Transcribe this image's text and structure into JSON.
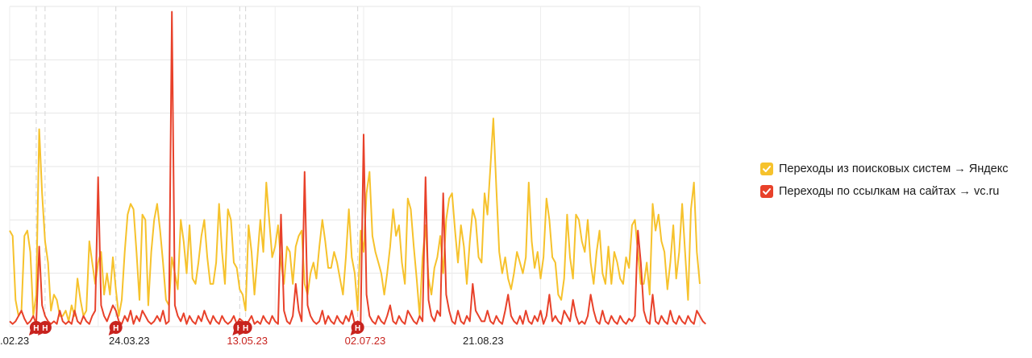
{
  "chart_data": {
    "type": "line",
    "x_axis": {
      "ticks": [
        {
          "label": ".02.23",
          "index": 0,
          "color": "#222222"
        },
        {
          "label": "24.03.23",
          "index": 40,
          "color": "#222222"
        },
        {
          "label": "13.05.23",
          "index": 80,
          "color": "#c8231e"
        },
        {
          "label": "02.07.23",
          "index": 120,
          "color": "#c8231e"
        },
        {
          "label": "21.08.23",
          "index": 160,
          "color": "#222222"
        }
      ]
    },
    "ylim": [
      0,
      6
    ],
    "grid": true,
    "legend_position": "right",
    "series": [
      {
        "name": "Переходы из поисковых систем → Яндекс",
        "color": "#f6c22c",
        "values": [
          1.8,
          1.7,
          0.5,
          0.2,
          0.3,
          1.7,
          1.8,
          1.4,
          0.2,
          0.6,
          3.7,
          2.5,
          1.6,
          1.2,
          0.3,
          0.6,
          0.5,
          0.2,
          0.2,
          0.3,
          0.1,
          0.4,
          0.2,
          0.9,
          0.5,
          0.2,
          0.3,
          1.6,
          1.2,
          0.8,
          1.2,
          1.4,
          0.6,
          1.0,
          0.6,
          1.3,
          0.7,
          0.2,
          0.5,
          1.4,
          2.1,
          2.3,
          2.2,
          1.4,
          0.5,
          2.1,
          2.0,
          0.4,
          1.4,
          2.0,
          2.3,
          1.8,
          1.2,
          0.5,
          0.4,
          1.3,
          1.0,
          0.7,
          2.0,
          1.6,
          1.0,
          1.9,
          0.9,
          0.8,
          1.2,
          1.7,
          2.0,
          1.3,
          0.8,
          0.8,
          1.2,
          2.3,
          1.4,
          0.8,
          2.2,
          2.0,
          1.2,
          1.1,
          0.7,
          0.6,
          0.3,
          1.9,
          1.4,
          0.6,
          1.3,
          2.0,
          1.4,
          2.7,
          2.0,
          1.3,
          1.5,
          1.9,
          1.2,
          0.8,
          1.5,
          1.4,
          0.8,
          1.5,
          1.7,
          1.8,
          0.8,
          0.6,
          1.0,
          1.2,
          0.9,
          1.5,
          2.0,
          1.6,
          1.1,
          1.1,
          1.4,
          1.2,
          0.9,
          0.6,
          1.3,
          2.2,
          1.3,
          1.0,
          0.3,
          1.8,
          1.4,
          2.5,
          2.9,
          1.7,
          1.4,
          1.2,
          1.0,
          0.6,
          1.0,
          1.5,
          2.2,
          1.7,
          1.9,
          1.2,
          0.8,
          2.4,
          2.2,
          1.5,
          0.9,
          0.2,
          1.3,
          1.9,
          0.9,
          0.6,
          1.1,
          1.3,
          1.7,
          1.0,
          2.0,
          2.4,
          2.5,
          1.8,
          1.2,
          1.9,
          1.5,
          0.8,
          1.6,
          2.2,
          2.0,
          1.3,
          1.2,
          2.5,
          2.1,
          3.0,
          3.9,
          2.6,
          1.4,
          1.0,
          1.3,
          0.9,
          0.7,
          1.0,
          1.4,
          1.2,
          1.0,
          1.3,
          2.7,
          1.6,
          1.1,
          1.4,
          0.9,
          1.3,
          2.4,
          2.0,
          1.3,
          1.2,
          0.6,
          0.5,
          0.9,
          2.1,
          1.3,
          0.9,
          2.1,
          2.0,
          1.6,
          1.4,
          2.0,
          1.2,
          0.8,
          1.4,
          1.8,
          1.0,
          0.8,
          1.5,
          0.8,
          1.4,
          1.2,
          0.9,
          0.8,
          1.3,
          1.1,
          1.9,
          2.0,
          1.4,
          0.8,
          0.8,
          1.2,
          0.6,
          2.3,
          1.8,
          2.1,
          1.6,
          1.4,
          0.7,
          1.2,
          1.9,
          0.9,
          1.4,
          2.3,
          1.4,
          0.5,
          2.2,
          2.7,
          1.4,
          0.8
        ]
      },
      {
        "name": "Переходы по ссылкам на сайтах → vc.ru",
        "color": "#e8412a",
        "values": [
          0.1,
          0.05,
          0.1,
          0.2,
          0.3,
          0.15,
          0.05,
          0.1,
          0.2,
          0.05,
          1.5,
          0.4,
          0.2,
          0.1,
          0.05,
          0.1,
          0.05,
          0.3,
          0.1,
          0.05,
          0.1,
          0.05,
          0.3,
          0.1,
          0.05,
          0.2,
          0.1,
          0.05,
          0.2,
          0.3,
          2.8,
          0.4,
          0.2,
          0.1,
          0.25,
          0.4,
          0.3,
          0.1,
          0.05,
          0.2,
          0.1,
          0.3,
          0.05,
          0.2,
          0.1,
          0.3,
          0.2,
          0.1,
          0.05,
          0.1,
          0.2,
          0.1,
          0.3,
          0.05,
          0.1,
          5.9,
          0.4,
          0.2,
          0.1,
          0.25,
          0.05,
          0.2,
          0.1,
          0.05,
          0.2,
          0.1,
          0.3,
          0.15,
          0.05,
          0.2,
          0.1,
          0.05,
          0.2,
          0.1,
          0.05,
          0.1,
          0.2,
          0.05,
          0.15,
          0.1,
          0.05,
          0.1,
          0.2,
          0.05,
          0.1,
          0.05,
          0.2,
          0.1,
          0.05,
          0.2,
          0.1,
          0.05,
          2.1,
          0.3,
          0.1,
          0.05,
          0.2,
          0.8,
          0.3,
          0.1,
          2.9,
          0.4,
          0.2,
          0.1,
          0.05,
          0.1,
          0.3,
          0.05,
          0.2,
          0.1,
          0.05,
          0.2,
          0.1,
          0.05,
          0.2,
          0.1,
          0.3,
          0.05,
          0.1,
          0.05,
          3.6,
          0.6,
          0.2,
          0.1,
          0.05,
          0.2,
          0.1,
          0.05,
          0.2,
          0.4,
          0.1,
          0.05,
          0.2,
          0.1,
          0.05,
          0.3,
          0.2,
          0.1,
          0.05,
          0.2,
          0.1,
          2.8,
          0.5,
          0.2,
          0.1,
          0.3,
          0.2,
          2.5,
          0.6,
          0.3,
          0.1,
          0.05,
          0.3,
          0.1,
          0.05,
          0.2,
          0.1,
          0.8,
          0.3,
          0.2,
          0.1,
          0.1,
          0.3,
          0.1,
          0.05,
          0.2,
          0.1,
          0.05,
          0.3,
          0.6,
          0.2,
          0.1,
          0.05,
          0.2,
          0.05,
          0.3,
          0.1,
          0.05,
          0.2,
          0.1,
          0.3,
          0.05,
          0.2,
          0.6,
          0.1,
          0.2,
          0.1,
          0.05,
          0.3,
          0.2,
          0.1,
          0.5,
          0.2,
          0.05,
          0.1,
          0.05,
          0.2,
          0.6,
          0.3,
          0.1,
          0.05,
          0.3,
          0.1,
          0.05,
          0.2,
          0.1,
          0.05,
          0.2,
          0.1,
          0.05,
          0.15,
          0.1,
          0.2,
          1.8,
          1.2,
          0.3,
          0.1,
          0.05,
          0.6,
          0.1,
          0.05,
          0.2,
          0.1,
          0.05,
          0.3,
          0.1,
          0.05,
          0.2,
          0.1,
          0.05,
          0.2,
          0.1,
          0.05,
          0.3,
          0.2,
          0.1,
          0.05
        ]
      }
    ],
    "event_markers": {
      "glyph": "Н",
      "color": "#c8231e",
      "indices": [
        9,
        12,
        36,
        78,
        80,
        118
      ]
    },
    "vertical_dashed_lines": {
      "indices": [
        9,
        12,
        36,
        78,
        80,
        118
      ]
    }
  }
}
